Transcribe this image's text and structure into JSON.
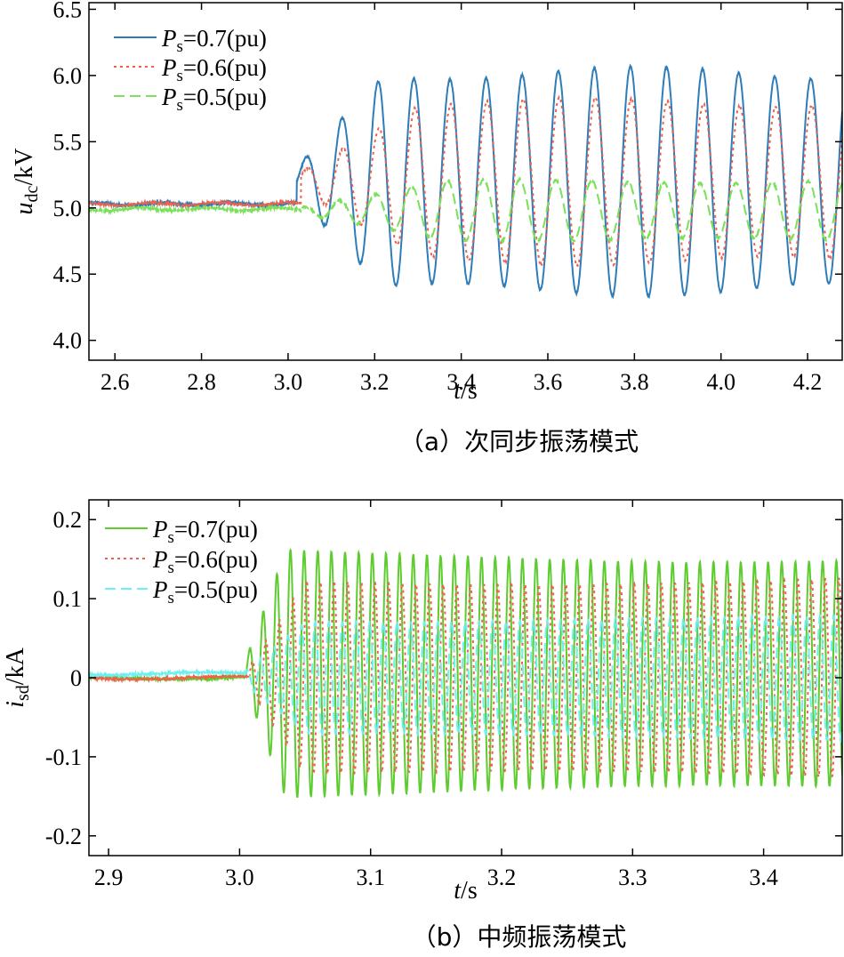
{
  "chart_data": [
    {
      "type": "line",
      "id": "a",
      "caption": "（a）次同步振荡模式",
      "xlabel_var": "t",
      "xlabel_unit": "/s",
      "ylabel_var": "u",
      "ylabel_sub": "dc",
      "ylabel_unit": "/kV",
      "xlim": [
        2.54,
        4.28
      ],
      "ylim": [
        3.85,
        6.55
      ],
      "xticks": [
        2.6,
        2.8,
        3.0,
        3.2,
        3.4,
        3.6,
        3.8,
        4.0,
        4.2
      ],
      "xtick_labels": [
        "2.6",
        "2.8",
        "3.0",
        "3.2",
        "3.4",
        "3.6",
        "3.8",
        "4.0",
        "4.2"
      ],
      "yticks": [
        4.0,
        4.5,
        5.0,
        5.5,
        6.0,
        6.5
      ],
      "ytick_labels": [
        "4.0",
        "4.5",
        "5.0",
        "5.5",
        "6.0",
        "6.5"
      ],
      "legend_position": "top-left",
      "series": [
        {
          "name_var": "P",
          "name_sub": "s",
          "name_rest": "=0.7(pu)",
          "color": "#2e7db8",
          "dash": "solid",
          "pre_level": 5.03,
          "onset": 3.02,
          "freq_hz": 12.0,
          "amplitude_steady": 0.82,
          "center": 5.2,
          "growth_end": 3.22
        },
        {
          "name_var": "P",
          "name_sub": "s",
          "name_rest": "=0.6(pu)",
          "color": "#f0604a",
          "dash": "dotted",
          "pre_level": 5.03,
          "onset": 3.03,
          "freq_hz": 12.0,
          "amplitude_steady": 0.6,
          "center": 5.2,
          "growth_end": 3.3
        },
        {
          "name_var": "P",
          "name_sub": "s",
          "name_rest": "=0.5(pu)",
          "color": "#7be05a",
          "dash": "dashed",
          "pre_level": 4.99,
          "onset": 3.03,
          "freq_hz": 12.0,
          "amplitude_steady": 0.22,
          "center": 4.98,
          "growth_end": 3.35
        }
      ]
    },
    {
      "type": "line",
      "id": "b",
      "caption": "（b）中频振荡模式",
      "xlabel_var": "t",
      "xlabel_unit": "/s",
      "ylabel_var": "i",
      "ylabel_sub": "sd",
      "ylabel_unit": "/kA",
      "xlim": [
        2.885,
        3.46
      ],
      "ylim": [
        -0.225,
        0.225
      ],
      "xticks": [
        2.9,
        3.0,
        3.1,
        3.2,
        3.3,
        3.4
      ],
      "xtick_labels": [
        "2.9",
        "3.0",
        "3.1",
        "3.2",
        "3.3",
        "3.4"
      ],
      "yticks": [
        -0.2,
        -0.1,
        0,
        0.1,
        0.2
      ],
      "ytick_labels": [
        "-0.2",
        "-0.1",
        "0",
        "0.1",
        "0.2"
      ],
      "legend_position": "top-left",
      "series": [
        {
          "name_var": "P",
          "name_sub": "s",
          "name_rest": "=0.7(pu)",
          "color": "#5ccc2e",
          "dash": "solid",
          "pre_level": 0.0,
          "onset": 3.005,
          "freq_hz": 96.0,
          "amplitude_steady": 0.15,
          "center": 0.005,
          "growth_end": 3.035
        },
        {
          "name_var": "P",
          "name_sub": "s",
          "name_rest": "=0.6(pu)",
          "color": "#f0604a",
          "dash": "dotted",
          "pre_level": 0.0,
          "onset": 3.008,
          "freq_hz": 96.0,
          "amplitude_steady": 0.125,
          "center": 0.0,
          "growth_end": 3.05
        },
        {
          "name_var": "P",
          "name_sub": "s",
          "name_rest": "=0.5(pu)",
          "color": "#6ef0f0",
          "dash": "dashed",
          "pre_level": 0.005,
          "onset": 3.005,
          "freq_hz": 96.0,
          "amplitude_steady": 0.075,
          "center": 0.0,
          "growth_end": 3.05
        }
      ]
    }
  ]
}
